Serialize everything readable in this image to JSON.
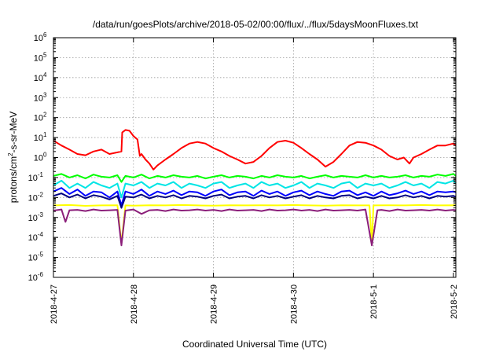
{
  "chart_data": {
    "type": "line",
    "title": "/data/run/goesPlots/archive/2018-05-02/00:00/flux/../flux/5daysMoonFluxes.txt",
    "xlabel": "Coordinated Universal Time (UTC)",
    "ylabel_parts": [
      "protons/cm",
      "2",
      "-s-sr-MeV"
    ],
    "yscale": "log",
    "ylim": [
      1e-06,
      1000000.0
    ],
    "xlim": [
      0,
      5.03
    ],
    "grid": true,
    "legend": "none",
    "x_ticks": [
      {
        "x": 0,
        "label": "2018-4-27"
      },
      {
        "x": 1,
        "label": "2018-4-28"
      },
      {
        "x": 2,
        "label": "2018-4-29"
      },
      {
        "x": 3,
        "label": "2018-4-30"
      },
      {
        "x": 4,
        "label": "2018-5-1"
      },
      {
        "x": 5,
        "label": "2018-5-2"
      }
    ],
    "y_ticks": [
      {
        "exp": -6,
        "label": "10",
        "sup": "-6"
      },
      {
        "exp": -5,
        "label": "10",
        "sup": "-5"
      },
      {
        "exp": -4,
        "label": "10",
        "sup": "-4"
      },
      {
        "exp": -3,
        "label": "10",
        "sup": "-3"
      },
      {
        "exp": -2,
        "label": "10",
        "sup": "-2"
      },
      {
        "exp": -1,
        "label": "10",
        "sup": "-1"
      },
      {
        "exp": 0,
        "label": "10",
        "sup": "0"
      },
      {
        "exp": 1,
        "label": "10",
        "sup": "1"
      },
      {
        "exp": 2,
        "label": "10",
        "sup": "2"
      },
      {
        "exp": 3,
        "label": "10",
        "sup": "3"
      },
      {
        "exp": 4,
        "label": "10",
        "sup": "4"
      },
      {
        "exp": 5,
        "label": "10",
        "sup": "5"
      },
      {
        "exp": 6,
        "label": "10",
        "sup": "6"
      }
    ],
    "series": [
      {
        "color": "#ff0000",
        "x": [
          0,
          0.1,
          0.2,
          0.3,
          0.4,
          0.5,
          0.6,
          0.7,
          0.85,
          0.86,
          0.9,
          0.95,
          1.0,
          1.05,
          1.08,
          1.1,
          1.15,
          1.2,
          1.25,
          1.3,
          1.4,
          1.5,
          1.6,
          1.7,
          1.8,
          1.9,
          2.0,
          2.1,
          2.2,
          2.3,
          2.4,
          2.5,
          2.6,
          2.7,
          2.8,
          2.9,
          3.0,
          3.1,
          3.2,
          3.3,
          3.4,
          3.5,
          3.6,
          3.7,
          3.8,
          3.9,
          4.0,
          4.1,
          4.2,
          4.3,
          4.38,
          4.45,
          4.5,
          4.6,
          4.7,
          4.8,
          4.9,
          5.0,
          5.03
        ],
        "y": [
          7,
          4,
          2.5,
          1.5,
          1.3,
          2.0,
          2.5,
          1.5,
          2.0,
          18,
          24,
          22,
          12,
          8,
          1.2,
          1.5,
          0.8,
          0.5,
          0.25,
          0.4,
          0.8,
          1.5,
          3,
          5,
          6,
          5,
          3,
          2,
          1.2,
          0.8,
          0.5,
          0.6,
          1.2,
          3,
          6,
          7,
          5.5,
          3,
          1.5,
          0.8,
          0.35,
          0.6,
          1.5,
          4,
          6,
          5.5,
          4,
          2.5,
          1.2,
          0.8,
          1.0,
          0.5,
          1.0,
          1.5,
          2.5,
          4,
          4,
          5,
          4
        ]
      },
      {
        "color": "#00ff00",
        "x": [
          0,
          0.1,
          0.2,
          0.3,
          0.4,
          0.5,
          0.6,
          0.7,
          0.8,
          0.85,
          0.9,
          1.0,
          1.1,
          1.2,
          1.3,
          1.4,
          1.5,
          1.6,
          1.7,
          1.8,
          1.9,
          2.0,
          2.1,
          2.2,
          2.3,
          2.4,
          2.5,
          2.6,
          2.7,
          2.8,
          2.9,
          3.0,
          3.1,
          3.2,
          3.3,
          3.4,
          3.5,
          3.6,
          3.7,
          3.8,
          3.9,
          4.0,
          4.1,
          4.2,
          4.3,
          4.4,
          4.5,
          4.6,
          4.7,
          4.8,
          4.9,
          5.0,
          5.03
        ],
        "y": [
          0.12,
          0.15,
          0.1,
          0.13,
          0.09,
          0.14,
          0.11,
          0.1,
          0.13,
          0.06,
          0.12,
          0.1,
          0.14,
          0.09,
          0.12,
          0.1,
          0.13,
          0.11,
          0.1,
          0.12,
          0.09,
          0.11,
          0.13,
          0.1,
          0.12,
          0.11,
          0.09,
          0.12,
          0.1,
          0.13,
          0.11,
          0.1,
          0.12,
          0.09,
          0.11,
          0.13,
          0.1,
          0.12,
          0.11,
          0.1,
          0.13,
          0.1,
          0.12,
          0.1,
          0.11,
          0.13,
          0.1,
          0.12,
          0.11,
          0.14,
          0.12,
          0.15,
          0.12
        ]
      },
      {
        "color": "#00e5e5",
        "x": [
          0,
          0.1,
          0.2,
          0.3,
          0.4,
          0.5,
          0.6,
          0.7,
          0.8,
          0.85,
          0.9,
          1.0,
          1.1,
          1.2,
          1.3,
          1.4,
          1.5,
          1.6,
          1.7,
          1.8,
          1.9,
          2.0,
          2.1,
          2.2,
          2.3,
          2.4,
          2.5,
          2.6,
          2.7,
          2.8,
          2.9,
          3.0,
          3.1,
          3.2,
          3.3,
          3.4,
          3.5,
          3.6,
          3.7,
          3.8,
          3.9,
          4.0,
          4.1,
          4.2,
          4.3,
          4.4,
          4.5,
          4.6,
          4.7,
          4.8,
          4.9,
          5.0,
          5.03
        ],
        "y": [
          0.04,
          0.07,
          0.03,
          0.05,
          0.03,
          0.06,
          0.04,
          0.03,
          0.05,
          0.01,
          0.05,
          0.04,
          0.06,
          0.03,
          0.05,
          0.04,
          0.06,
          0.03,
          0.05,
          0.04,
          0.03,
          0.05,
          0.06,
          0.03,
          0.04,
          0.05,
          0.03,
          0.06,
          0.04,
          0.05,
          0.03,
          0.04,
          0.06,
          0.03,
          0.05,
          0.04,
          0.03,
          0.05,
          0.06,
          0.03,
          0.05,
          0.04,
          0.05,
          0.03,
          0.04,
          0.06,
          0.04,
          0.05,
          0.03,
          0.06,
          0.05,
          0.07,
          0.05
        ]
      },
      {
        "color": "#0000ff",
        "x": [
          0,
          0.1,
          0.2,
          0.3,
          0.4,
          0.5,
          0.6,
          0.7,
          0.8,
          0.85,
          0.9,
          1.0,
          1.1,
          1.2,
          1.3,
          1.4,
          1.5,
          1.6,
          1.7,
          1.8,
          1.9,
          2.0,
          2.1,
          2.2,
          2.3,
          2.4,
          2.5,
          2.6,
          2.7,
          2.8,
          2.9,
          3.0,
          3.1,
          3.2,
          3.3,
          3.4,
          3.5,
          3.6,
          3.7,
          3.8,
          3.9,
          4.0,
          4.1,
          4.2,
          4.3,
          4.4,
          4.5,
          4.6,
          4.7,
          4.8,
          4.9,
          5.0,
          5.03
        ],
        "y": [
          0.02,
          0.03,
          0.015,
          0.025,
          0.012,
          0.02,
          0.018,
          0.01,
          0.02,
          0.004,
          0.02,
          0.015,
          0.025,
          0.012,
          0.02,
          0.015,
          0.022,
          0.013,
          0.02,
          0.018,
          0.012,
          0.02,
          0.025,
          0.013,
          0.018,
          0.02,
          0.012,
          0.022,
          0.015,
          0.02,
          0.012,
          0.018,
          0.022,
          0.013,
          0.02,
          0.015,
          0.012,
          0.02,
          0.022,
          0.013,
          0.018,
          0.012,
          0.02,
          0.013,
          0.016,
          0.022,
          0.015,
          0.02,
          0.013,
          0.02,
          0.018,
          0.02,
          0.018
        ]
      },
      {
        "color": "#000080",
        "x": [
          0,
          0.1,
          0.2,
          0.3,
          0.4,
          0.5,
          0.6,
          0.7,
          0.8,
          0.85,
          0.9,
          1.0,
          1.1,
          1.2,
          1.3,
          1.4,
          1.5,
          1.6,
          1.7,
          1.8,
          1.9,
          2.0,
          2.1,
          2.2,
          2.3,
          2.4,
          2.5,
          2.6,
          2.7,
          2.8,
          2.9,
          3.0,
          3.1,
          3.2,
          3.3,
          3.4,
          3.5,
          3.6,
          3.7,
          3.8,
          3.9,
          4.0,
          4.1,
          4.2,
          4.3,
          4.4,
          4.5,
          4.6,
          4.7,
          4.8,
          4.9,
          5.0,
          5.03
        ],
        "y": [
          0.012,
          0.016,
          0.01,
          0.014,
          0.009,
          0.013,
          0.011,
          0.008,
          0.012,
          0.003,
          0.011,
          0.01,
          0.014,
          0.009,
          0.012,
          0.01,
          0.013,
          0.009,
          0.012,
          0.011,
          0.009,
          0.012,
          0.014,
          0.009,
          0.011,
          0.012,
          0.009,
          0.013,
          0.01,
          0.012,
          0.009,
          0.011,
          0.013,
          0.009,
          0.012,
          0.01,
          0.009,
          0.012,
          0.013,
          0.009,
          0.011,
          0.009,
          0.012,
          0.009,
          0.01,
          0.013,
          0.01,
          0.012,
          0.009,
          0.012,
          0.011,
          0.012,
          0.011
        ]
      },
      {
        "color": "#ffff00",
        "x": [
          0,
          0.2,
          0.4,
          0.6,
          0.8,
          0.85,
          0.9,
          1.0,
          1.2,
          1.4,
          1.6,
          1.8,
          2.0,
          2.2,
          2.4,
          2.6,
          2.8,
          3.0,
          3.2,
          3.4,
          3.6,
          3.8,
          3.95,
          3.98,
          4.0,
          4.2,
          4.4,
          4.6,
          4.8,
          5.0,
          5.03
        ],
        "y": [
          0.004,
          0.0042,
          0.0038,
          0.004,
          0.0041,
          5e-05,
          0.004,
          0.0039,
          0.0041,
          0.004,
          0.0042,
          0.004,
          0.0039,
          0.0041,
          0.004,
          0.0041,
          0.004,
          0.0042,
          0.004,
          0.0039,
          0.0041,
          0.004,
          0.004,
          5e-05,
          0.004,
          0.0041,
          0.004,
          0.0042,
          0.004,
          0.0041,
          0.004
        ]
      },
      {
        "color": "#8b1f7a",
        "x": [
          0,
          0.1,
          0.15,
          0.2,
          0.3,
          0.4,
          0.5,
          0.6,
          0.7,
          0.8,
          0.85,
          0.9,
          1.0,
          1.1,
          1.2,
          1.3,
          1.4,
          1.5,
          1.6,
          1.7,
          1.8,
          1.9,
          2.0,
          2.1,
          2.2,
          2.3,
          2.4,
          2.5,
          2.6,
          2.7,
          2.8,
          2.9,
          3.0,
          3.1,
          3.2,
          3.3,
          3.4,
          3.5,
          3.6,
          3.7,
          3.8,
          3.9,
          3.98,
          4.05,
          4.1,
          4.2,
          4.3,
          4.4,
          4.5,
          4.6,
          4.7,
          4.8,
          4.9,
          5.0,
          5.03
        ],
        "y": [
          0.0022,
          0.0025,
          0.0006,
          0.0023,
          0.0024,
          0.0021,
          0.0025,
          0.0022,
          0.0023,
          0.0024,
          4e-05,
          0.0022,
          0.0025,
          0.0015,
          0.0023,
          0.0024,
          0.0021,
          0.0025,
          0.0022,
          0.0023,
          0.0025,
          0.0022,
          0.0024,
          0.0021,
          0.0025,
          0.0022,
          0.0023,
          0.0024,
          0.0021,
          0.0025,
          0.0022,
          0.0023,
          0.0025,
          0.0022,
          0.0024,
          0.0021,
          0.0025,
          0.0022,
          0.0023,
          0.0024,
          0.0022,
          0.0025,
          4e-05,
          0.0023,
          0.0024,
          0.0021,
          0.0025,
          0.0022,
          0.0023,
          0.0024,
          0.0022,
          0.0025,
          0.0022,
          0.0024,
          0.0023
        ]
      }
    ]
  }
}
